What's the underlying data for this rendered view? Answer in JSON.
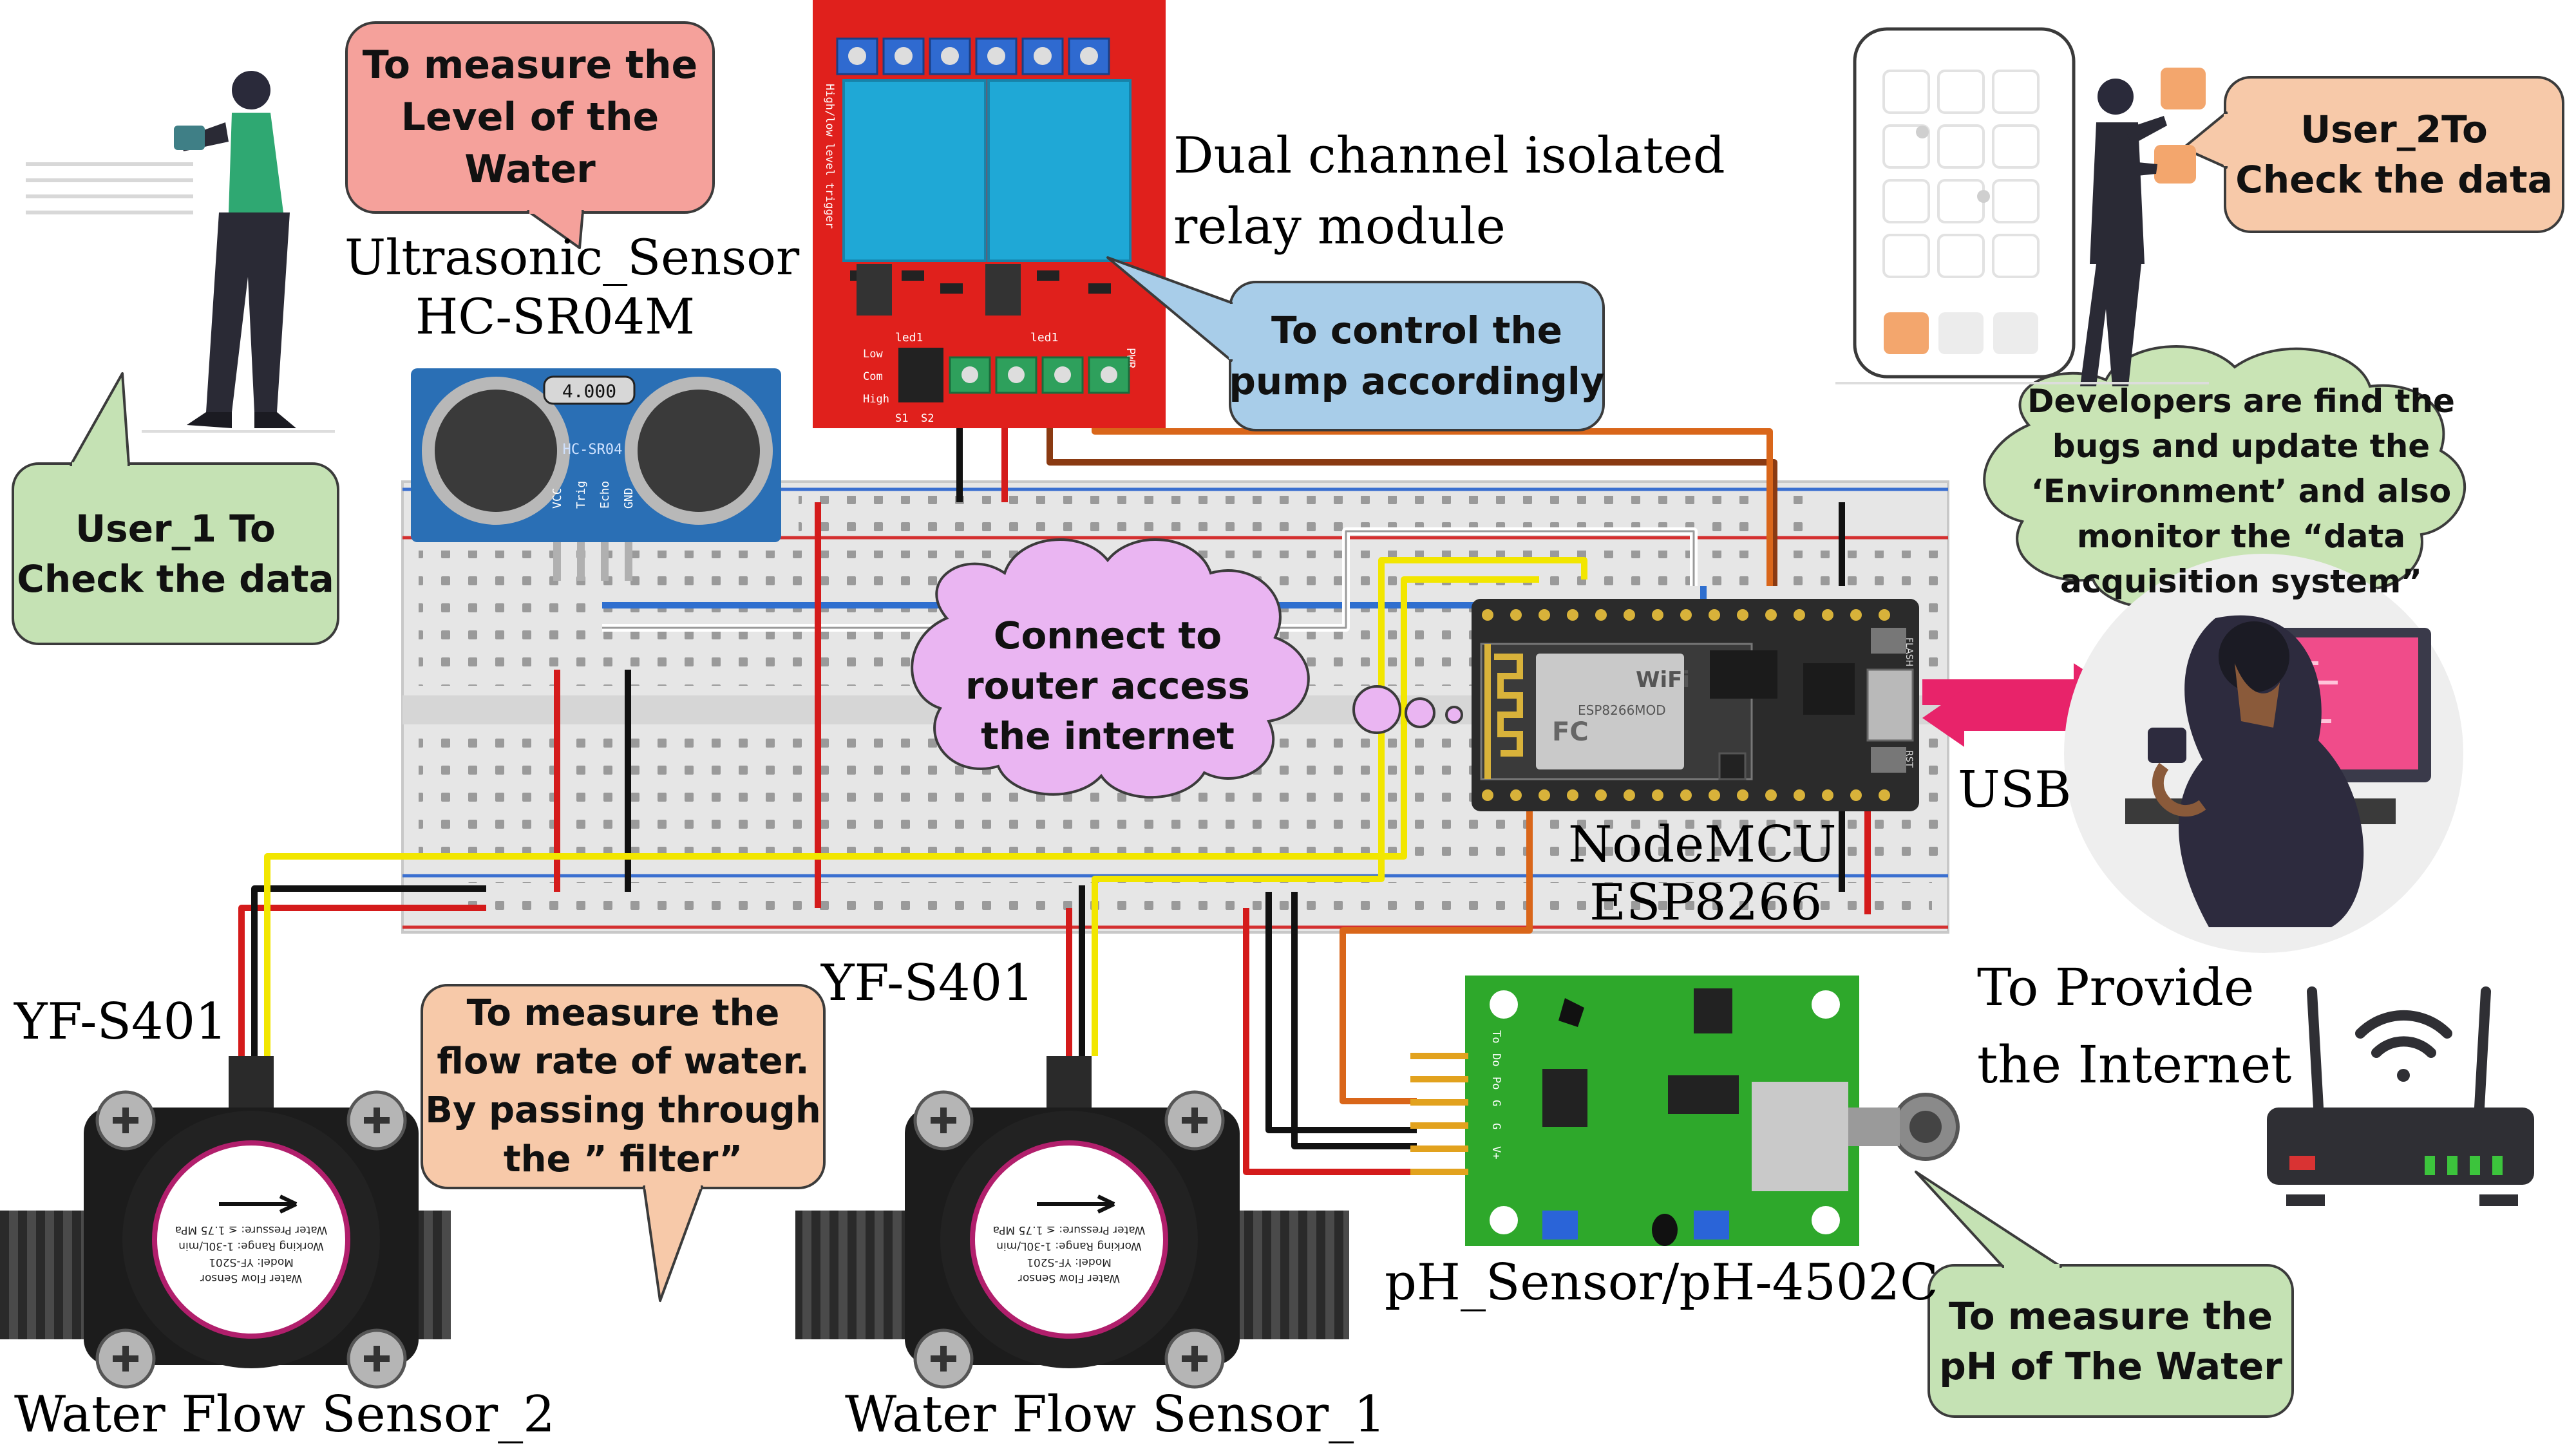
{
  "components": {
    "ultrasonic": {
      "line1": "Ultrasonic_Sensor",
      "line2": "HC-SR04M",
      "display": "4.000",
      "chip": "HC-SR04",
      "pins": [
        "VCC",
        "Trig",
        "Echo",
        "GND"
      ]
    },
    "relay": {
      "line1": "Dual channel isolated",
      "line2": "relay module",
      "side_text": "High/low level trigger",
      "led1": "led1",
      "led2": "led1",
      "pwr": "PWR",
      "jumper": [
        "Low",
        "Com",
        "High"
      ],
      "bottom": [
        "S1",
        "S2"
      ]
    },
    "nodemcu": {
      "line1": "NodeMCU",
      "line2": "ESP8266",
      "wifi": "WiFi",
      "chip": "ESP8266MOD",
      "fc": "FC",
      "flash": "FLASH",
      "rst": "RST"
    },
    "flow_sensor_2": {
      "model": "YF-S401",
      "name": "Water Flow Sensor_2"
    },
    "flow_sensor_1": {
      "model": "YF-S401",
      "name": "Water Flow Sensor_1"
    },
    "flow_dial": {
      "l1": "Water Flow Sensor",
      "l2": "Model: YF-S201",
      "l3": "Working Range: 1-30L/min",
      "l4": "Water Pressure: ≤ 1.75 MPa"
    },
    "ph": {
      "name": "pH_Sensor/pH-4502C",
      "pins": [
        "To",
        "Do",
        "Po",
        "G",
        "G",
        "V+"
      ]
    },
    "usb": "USB",
    "router": {
      "line1": "To Provide",
      "line2": "the Internet"
    }
  },
  "callouts": {
    "water_level": [
      "To measure the",
      "Level of the",
      "Water"
    ],
    "pump": [
      "To control the",
      "pump accordingly"
    ],
    "user1": [
      "User_1 To",
      "Check the data"
    ],
    "user2": [
      "User_2To",
      "Check the data"
    ],
    "internet": [
      "Connect to",
      "router access",
      "the internet"
    ],
    "developers": [
      "Developers are find the",
      "bugs and update the",
      "‘Environment’ and also",
      "monitor the “data",
      "acquisition system”"
    ],
    "flow": [
      "To measure the",
      "flow rate of water.",
      "By passing through",
      "the ” filter”"
    ],
    "ph": [
      "To measure the",
      "pH of The Water"
    ]
  },
  "colors": {
    "relay_board": "#e0201c",
    "relay_block": "#1fa8d6",
    "ultrasonic_board": "#2a6fb5",
    "nodemcu_board": "#2b2b2b",
    "ph_board": "#2ea82b",
    "wire_red": "#d41b1b",
    "wire_black": "#111111",
    "wire_yellow": "#f2e600",
    "wire_blue": "#2f6fcf",
    "wire_orange": "#d9661a",
    "wire_brown": "#8a3a12",
    "arrow_pink": "#e8236a",
    "bubble_red": "#f5a19b",
    "bubble_blue": "#a8cde9",
    "bubble_green": "#c5e2b4",
    "bubble_orange": "#f7c9a9",
    "cloud_purple": "#eab5f2",
    "cloud_green": "#c9e4b5"
  },
  "icons": [
    "user1-illustration",
    "user2-phone-illustration",
    "developer-laptop-illustration",
    "router-icon",
    "wifi-icon"
  ]
}
